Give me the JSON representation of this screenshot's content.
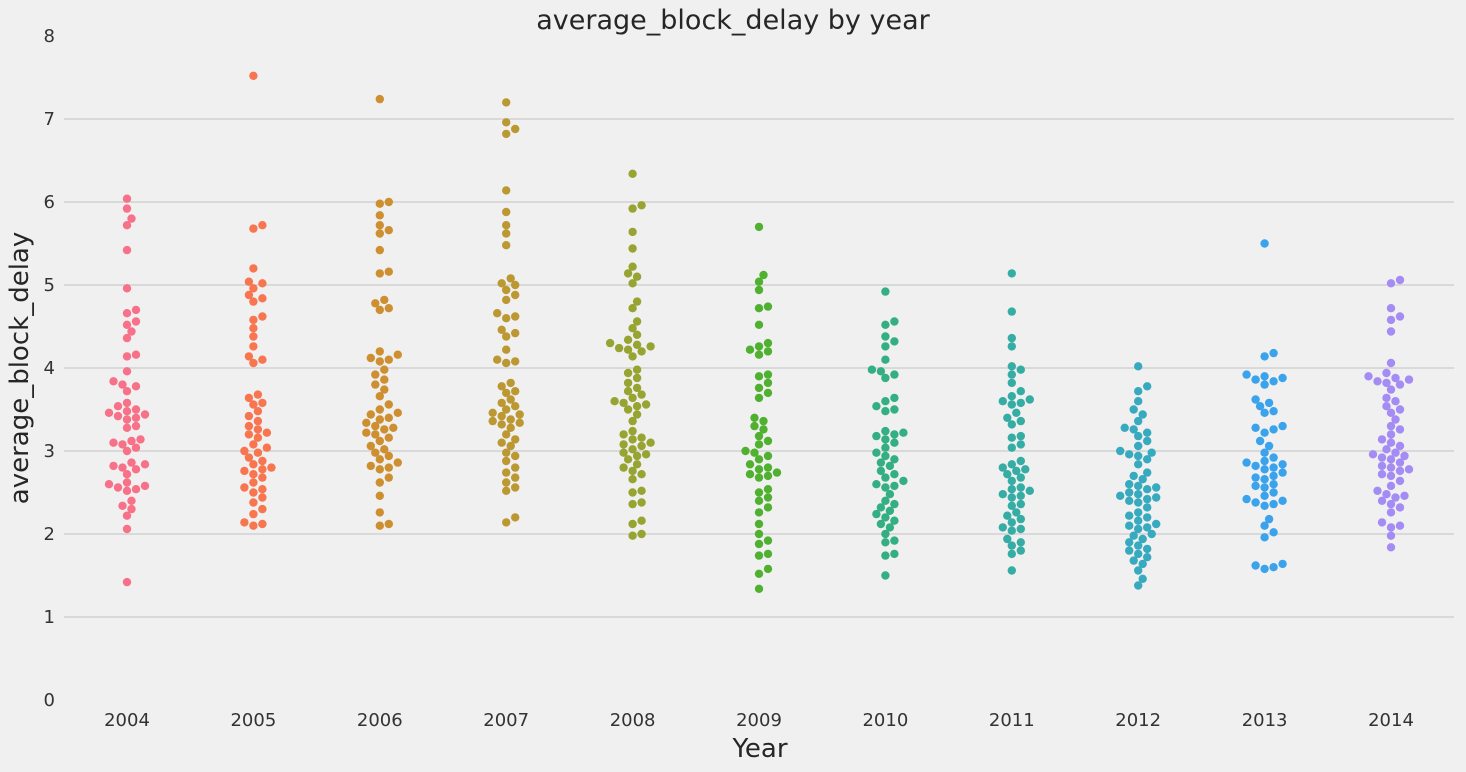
{
  "chart_data": {
    "type": "scatter",
    "subtype": "swarm",
    "title": "average_block_delay by year",
    "xlabel": "Year",
    "ylabel": "average_block_delay",
    "ylim": [
      0,
      8
    ],
    "yticks": [
      "0",
      "1",
      "2",
      "3",
      "4",
      "5",
      "6",
      "7",
      "8"
    ],
    "grid": true,
    "legend": "none",
    "categories": [
      "2004",
      "2005",
      "2006",
      "2007",
      "2008",
      "2009",
      "2010",
      "2011",
      "2012",
      "2013",
      "2014"
    ],
    "colors": [
      "#f77189",
      "#f7754f",
      "#ce8f31",
      "#bb9832",
      "#97a431",
      "#50b131",
      "#34af84",
      "#36ada4",
      "#38aabf",
      "#3ba3ec",
      "#a48cf4",
      "#e866f4",
      "#f668c2"
    ],
    "series": [
      {
        "category": "2004",
        "values": [
          6.04,
          5.92,
          5.8,
          5.72,
          5.42,
          4.96,
          4.7,
          4.66,
          4.56,
          4.52,
          4.44,
          4.36,
          4.16,
          4.14,
          3.96,
          3.84,
          3.8,
          3.78,
          3.72,
          3.58,
          3.54,
          3.5,
          3.48,
          3.46,
          3.44,
          3.42,
          3.4,
          3.38,
          3.3,
          3.28,
          3.14,
          3.12,
          3.1,
          3.08,
          3.04,
          3.0,
          2.86,
          2.84,
          2.82,
          2.8,
          2.78,
          2.72,
          2.62,
          2.6,
          2.58,
          2.56,
          2.54,
          2.52,
          2.4,
          2.34,
          2.3,
          2.22,
          2.06,
          1.42
        ]
      },
      {
        "category": "2005",
        "values": [
          7.52,
          5.72,
          5.68,
          5.2,
          5.04,
          5.02,
          4.96,
          4.88,
          4.84,
          4.8,
          4.62,
          4.58,
          4.48,
          4.38,
          4.26,
          4.14,
          4.1,
          4.06,
          3.68,
          3.64,
          3.58,
          3.56,
          3.48,
          3.42,
          3.36,
          3.3,
          3.26,
          3.22,
          3.2,
          3.16,
          3.08,
          3.04,
          3.0,
          2.98,
          2.92,
          2.88,
          2.84,
          2.8,
          2.78,
          2.76,
          2.72,
          2.68,
          2.62,
          2.56,
          2.54,
          2.5,
          2.44,
          2.38,
          2.3,
          2.24,
          2.14,
          2.12,
          2.1
        ]
      },
      {
        "category": "2006",
        "values": [
          7.24,
          6.0,
          5.98,
          5.84,
          5.72,
          5.66,
          5.62,
          5.42,
          5.16,
          5.14,
          4.82,
          4.78,
          4.72,
          4.7,
          4.2,
          4.16,
          4.12,
          4.1,
          4.08,
          3.98,
          3.92,
          3.86,
          3.8,
          3.74,
          3.66,
          3.56,
          3.5,
          3.46,
          3.44,
          3.4,
          3.38,
          3.34,
          3.3,
          3.28,
          3.26,
          3.22,
          3.2,
          3.16,
          3.12,
          3.06,
          3.02,
          2.98,
          2.94,
          2.9,
          2.86,
          2.82,
          2.8,
          2.78,
          2.68,
          2.62,
          2.46,
          2.26,
          2.12,
          2.1
        ]
      },
      {
        "category": "2007",
        "values": [
          7.2,
          6.96,
          6.88,
          6.82,
          6.14,
          5.88,
          5.72,
          5.62,
          5.48,
          5.08,
          5.02,
          5.0,
          4.94,
          4.88,
          4.82,
          4.66,
          4.62,
          4.6,
          4.46,
          4.42,
          4.38,
          4.22,
          4.1,
          4.08,
          4.06,
          3.82,
          3.78,
          3.72,
          3.7,
          3.62,
          3.58,
          3.54,
          3.5,
          3.46,
          3.44,
          3.42,
          3.38,
          3.36,
          3.34,
          3.32,
          3.28,
          3.2,
          3.14,
          3.1,
          3.06,
          2.98,
          2.94,
          2.88,
          2.8,
          2.74,
          2.68,
          2.62,
          2.56,
          2.52,
          2.2,
          2.14
        ]
      },
      {
        "category": "2008",
        "values": [
          6.34,
          5.96,
          5.92,
          5.64,
          5.44,
          5.22,
          5.14,
          5.1,
          5.02,
          4.8,
          4.72,
          4.56,
          4.48,
          4.4,
          4.34,
          4.3,
          4.28,
          4.26,
          4.24,
          4.22,
          4.2,
          4.14,
          3.98,
          3.94,
          3.88,
          3.82,
          3.76,
          3.72,
          3.68,
          3.64,
          3.6,
          3.58,
          3.56,
          3.54,
          3.5,
          3.44,
          3.36,
          3.24,
          3.2,
          3.16,
          3.14,
          3.1,
          3.08,
          3.06,
          3.02,
          2.98,
          2.96,
          2.94,
          2.9,
          2.84,
          2.8,
          2.76,
          2.72,
          2.66,
          2.52,
          2.5,
          2.38,
          2.36,
          2.16,
          2.12,
          2.0,
          1.98
        ]
      },
      {
        "category": "2009",
        "values": [
          5.7,
          5.12,
          5.04,
          4.94,
          4.74,
          4.72,
          4.52,
          4.3,
          4.26,
          4.22,
          4.2,
          4.16,
          3.92,
          3.9,
          3.82,
          3.76,
          3.7,
          3.64,
          3.4,
          3.36,
          3.3,
          3.26,
          3.18,
          3.12,
          3.08,
          3.0,
          2.98,
          2.94,
          2.9,
          2.84,
          2.8,
          2.78,
          2.74,
          2.72,
          2.7,
          2.68,
          2.54,
          2.5,
          2.44,
          2.4,
          2.32,
          2.26,
          2.12,
          2.0,
          1.92,
          1.88,
          1.76,
          1.74,
          1.58,
          1.52,
          1.34
        ]
      },
      {
        "category": "2010",
        "values": [
          4.92,
          4.56,
          4.52,
          4.38,
          4.32,
          4.26,
          4.1,
          3.98,
          3.96,
          3.92,
          3.88,
          3.64,
          3.6,
          3.54,
          3.5,
          3.48,
          3.24,
          3.22,
          3.2,
          3.18,
          3.14,
          3.1,
          3.04,
          2.98,
          2.94,
          2.9,
          2.86,
          2.82,
          2.76,
          2.72,
          2.68,
          2.64,
          2.6,
          2.58,
          2.56,
          2.48,
          2.4,
          2.36,
          2.32,
          2.28,
          2.24,
          2.2,
          2.16,
          2.12,
          2.08,
          2.0,
          1.92,
          1.9,
          1.76,
          1.74,
          1.5
        ]
      },
      {
        "category": "2011",
        "values": [
          5.14,
          4.68,
          4.36,
          4.26,
          4.02,
          3.98,
          3.92,
          3.82,
          3.72,
          3.66,
          3.62,
          3.6,
          3.58,
          3.56,
          3.46,
          3.4,
          3.36,
          3.32,
          3.18,
          3.16,
          3.08,
          3.04,
          2.88,
          2.84,
          2.8,
          2.78,
          2.76,
          2.72,
          2.68,
          2.64,
          2.56,
          2.54,
          2.52,
          2.48,
          2.46,
          2.44,
          2.36,
          2.34,
          2.26,
          2.22,
          2.18,
          2.14,
          2.08,
          2.06,
          2.04,
          1.94,
          1.9,
          1.86,
          1.8,
          1.76,
          1.56
        ]
      },
      {
        "category": "2012",
        "values": [
          4.02,
          3.78,
          3.72,
          3.6,
          3.5,
          3.44,
          3.36,
          3.28,
          3.26,
          3.22,
          3.18,
          3.12,
          3.06,
          3.0,
          2.98,
          2.96,
          2.94,
          2.9,
          2.84,
          2.74,
          2.7,
          2.66,
          2.6,
          2.58,
          2.56,
          2.54,
          2.5,
          2.48,
          2.46,
          2.44,
          2.42,
          2.4,
          2.38,
          2.32,
          2.26,
          2.22,
          2.2,
          2.16,
          2.12,
          2.1,
          2.08,
          2.06,
          2.0,
          1.98,
          1.94,
          1.9,
          1.86,
          1.82,
          1.8,
          1.76,
          1.72,
          1.68,
          1.64,
          1.56,
          1.46,
          1.38
        ]
      },
      {
        "category": "2013",
        "values": [
          5.5,
          4.18,
          4.14,
          3.92,
          3.9,
          3.88,
          3.86,
          3.84,
          3.8,
          3.62,
          3.58,
          3.54,
          3.48,
          3.46,
          3.3,
          3.28,
          3.26,
          3.22,
          3.12,
          3.06,
          2.98,
          2.92,
          2.88,
          2.86,
          2.84,
          2.82,
          2.8,
          2.78,
          2.74,
          2.7,
          2.68,
          2.66,
          2.6,
          2.58,
          2.56,
          2.5,
          2.46,
          2.42,
          2.4,
          2.38,
          2.36,
          2.34,
          2.18,
          2.1,
          2.02,
          1.96,
          1.64,
          1.62,
          1.6,
          1.58
        ]
      },
      {
        "category": "2014",
        "values": [
          5.06,
          5.02,
          4.72,
          4.62,
          4.58,
          4.44,
          4.06,
          3.94,
          3.9,
          3.88,
          3.86,
          3.84,
          3.82,
          3.8,
          3.74,
          3.64,
          3.6,
          3.54,
          3.5,
          3.46,
          3.38,
          3.3,
          3.26,
          3.2,
          3.14,
          3.1,
          3.06,
          3.02,
          2.98,
          2.96,
          2.94,
          2.92,
          2.9,
          2.86,
          2.82,
          2.8,
          2.78,
          2.76,
          2.72,
          2.7,
          2.64,
          2.58,
          2.52,
          2.48,
          2.46,
          2.44,
          2.4,
          2.36,
          2.32,
          2.26,
          2.14,
          2.1,
          2.08,
          1.98,
          1.84
        ]
      }
    ]
  }
}
